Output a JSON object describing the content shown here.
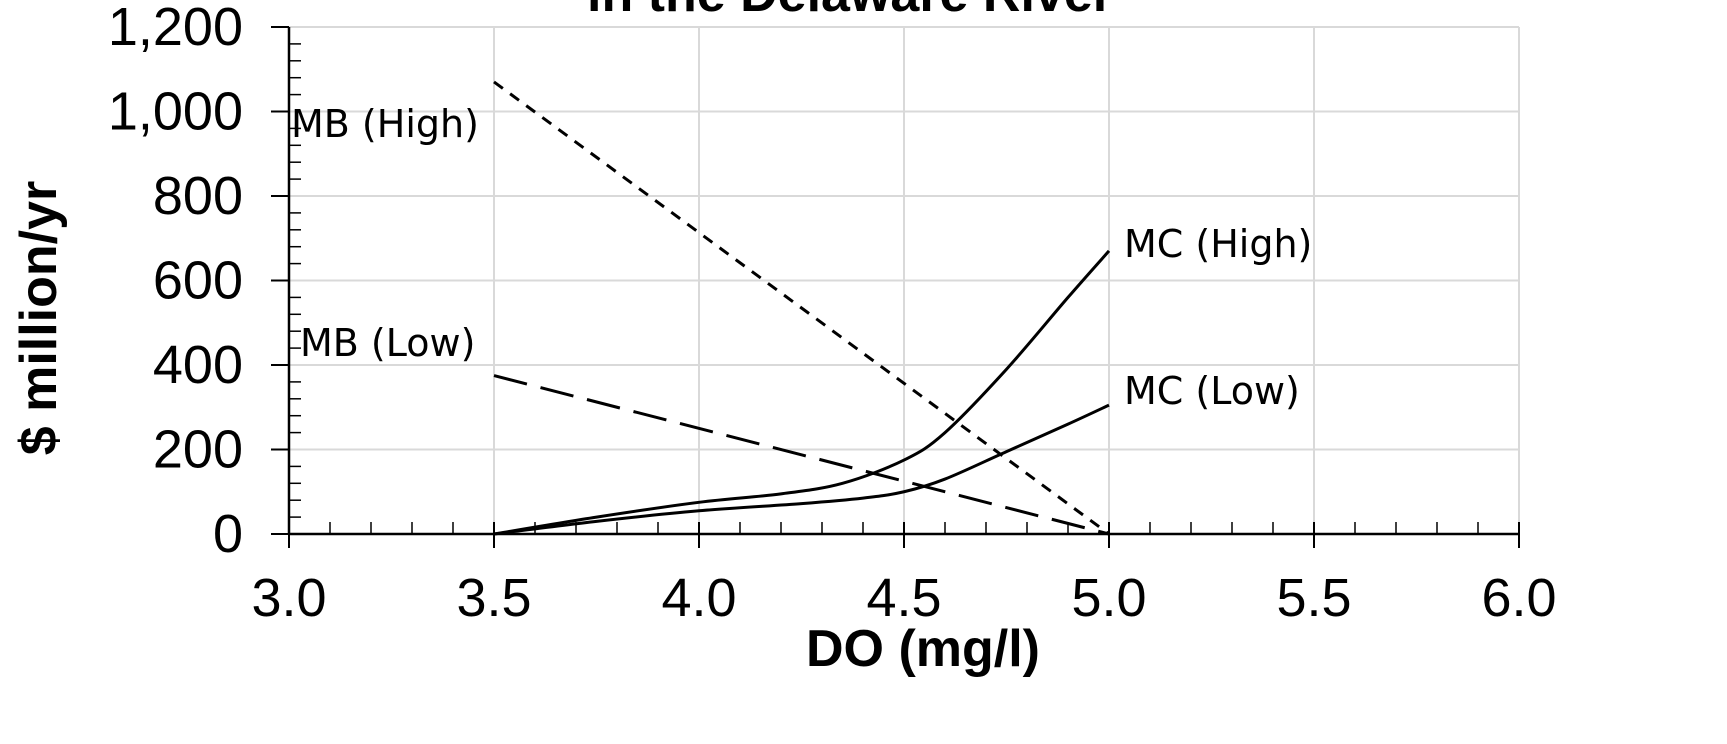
{
  "chart_data": {
    "type": "line",
    "title": "in the Delaware River",
    "xlabel": "DO (mg/l)",
    "ylabel": "$ million/yr",
    "xlim": [
      3.0,
      6.0
    ],
    "ylim": [
      0,
      1200
    ],
    "x_ticks": [
      "3.0",
      "3.5",
      "4.0",
      "4.5",
      "5.0",
      "5.5",
      "6.0"
    ],
    "y_ticks": [
      "0",
      "200",
      "400",
      "600",
      "800",
      "1,000",
      "1,200"
    ],
    "grid": true,
    "series": [
      {
        "name": "MB (High)",
        "style": "dotted",
        "points": [
          [
            3.5,
            1070
          ],
          [
            5.0,
            0
          ]
        ]
      },
      {
        "name": "MB (Low)",
        "style": "dashed",
        "points": [
          [
            3.5,
            375
          ],
          [
            5.0,
            0
          ]
        ]
      },
      {
        "name": "MC (High)",
        "style": "solid",
        "points": [
          [
            3.5,
            0
          ],
          [
            3.75,
            40
          ],
          [
            4.0,
            75
          ],
          [
            4.2,
            95
          ],
          [
            4.35,
            120
          ],
          [
            4.5,
            175
          ],
          [
            4.6,
            240
          ],
          [
            4.75,
            390
          ],
          [
            4.9,
            560
          ],
          [
            5.0,
            670
          ]
        ]
      },
      {
        "name": "MC (Low)",
        "style": "solid",
        "points": [
          [
            3.5,
            0
          ],
          [
            3.75,
            30
          ],
          [
            4.0,
            55
          ],
          [
            4.25,
            72
          ],
          [
            4.4,
            85
          ],
          [
            4.5,
            100
          ],
          [
            4.6,
            130
          ],
          [
            4.75,
            195
          ],
          [
            4.9,
            260
          ],
          [
            5.0,
            305
          ]
        ]
      }
    ]
  }
}
